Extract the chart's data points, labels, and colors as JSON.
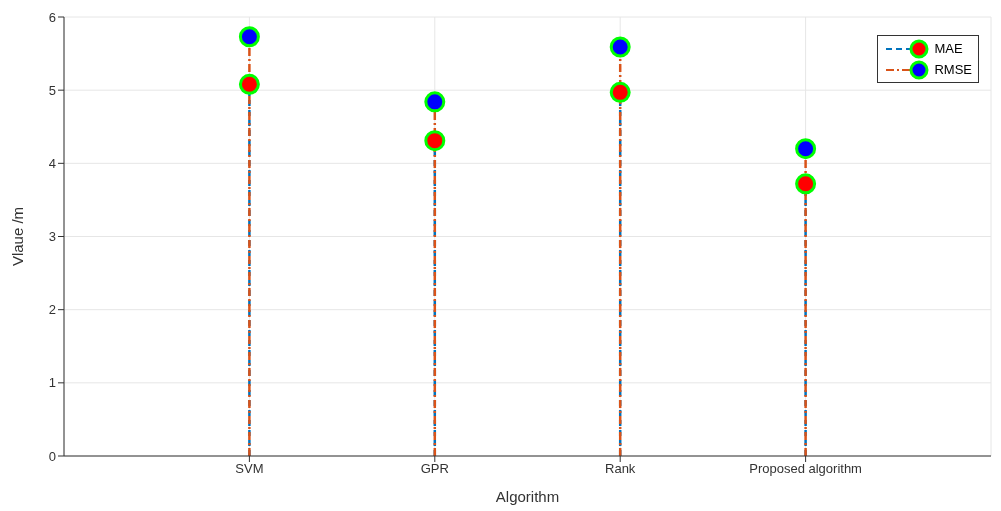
{
  "chart_data": {
    "type": "lollipop",
    "xlabel": "Algorithm",
    "ylabel": "Vlaue /m",
    "categories": [
      "SVM",
      "GPR",
      "Rank",
      "Proposed algorithm"
    ],
    "series": [
      {
        "name": "MAE",
        "color": "#ff0000",
        "values": [
          5.08,
          4.31,
          4.97,
          3.72
        ]
      },
      {
        "name": "RMSE",
        "color": "#0000ff",
        "values": [
          5.73,
          4.84,
          5.59,
          4.2
        ]
      }
    ],
    "ylim": [
      0,
      6
    ],
    "yticks": [
      0,
      1,
      2,
      3,
      4,
      5,
      6
    ],
    "grid": true,
    "legend": "top right",
    "marker": "circle"
  }
}
